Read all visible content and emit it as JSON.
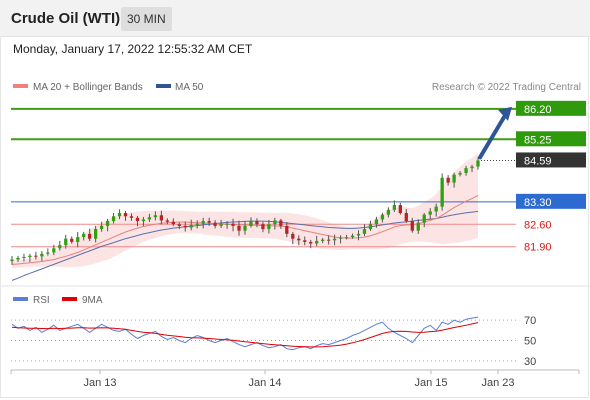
{
  "header": {
    "title": "Crude Oil (WTI)",
    "timeframe": "30 MIN"
  },
  "timestamp": "Monday, January 17, 2022 12:55:32 AM CET",
  "legend": {
    "ma20": {
      "label": "MA 20 + Bollinger Bands",
      "color": "#f08080"
    },
    "ma50": {
      "label": "MA 50",
      "color": "#2f5597"
    },
    "rsi": {
      "label": "RSI",
      "color": "#5b7fd6"
    },
    "rsi_ma": {
      "label": "9MA",
      "color": "#e00000"
    }
  },
  "copyright": "Research © 2022 Trading Central",
  "levels": [
    {
      "value": 86.2,
      "label": "86.20",
      "color": "#2e9a0c",
      "kind": "resistance"
    },
    {
      "value": 85.25,
      "label": "85.25",
      "color": "#2e9a0c",
      "kind": "resistance"
    },
    {
      "value": 84.59,
      "label": "84.59",
      "color": "#333333",
      "kind": "last"
    },
    {
      "value": 83.3,
      "label": "83.30",
      "color": "#2e6bd1",
      "kind": "pivot"
    },
    {
      "value": 82.6,
      "label": "82.60",
      "color": "#d61a1a",
      "kind": "support"
    },
    {
      "value": 81.9,
      "label": "81.90",
      "color": "#d61a1a",
      "kind": "support"
    }
  ],
  "chart_data": [
    {
      "type": "candlestick",
      "title": "Crude Oil (WTI)",
      "x_ticks": [
        "Jan 13",
        "Jan 14",
        "Jan 15",
        "Jan 23"
      ],
      "ylim": [
        80.8,
        86.6
      ],
      "close_path": [
        81.5,
        81.55,
        81.58,
        81.62,
        81.6,
        81.68,
        81.72,
        81.85,
        81.95,
        82.15,
        82.05,
        82.2,
        82.3,
        82.15,
        82.45,
        82.55,
        82.7,
        82.85,
        82.95,
        82.85,
        82.8,
        82.7,
        82.75,
        82.82,
        82.88,
        82.72,
        82.68,
        82.6,
        82.55,
        82.5,
        82.58,
        82.62,
        82.7,
        82.65,
        82.55,
        82.6,
        82.62,
        82.55,
        82.4,
        82.55,
        82.7,
        82.6,
        82.45,
        82.6,
        82.72,
        82.55,
        82.3,
        82.15,
        82.1,
        82.05,
        82.0,
        82.08,
        82.12,
        82.1,
        82.15,
        82.18,
        82.2,
        82.25,
        82.3,
        82.45,
        82.6,
        82.75,
        82.9,
        83.05,
        83.2,
        82.95,
        82.7,
        82.4,
        82.65,
        82.9,
        83.0,
        83.15,
        84.05,
        83.9,
        84.15,
        84.2,
        84.35,
        84.4,
        84.59
      ],
      "ma20_path": [
        81.35,
        81.36,
        81.38,
        81.4,
        81.42,
        81.44,
        81.47,
        81.5,
        81.55,
        81.6,
        81.66,
        81.72,
        81.8,
        81.88,
        81.96,
        82.04,
        82.12,
        82.2,
        82.28,
        82.36,
        82.42,
        82.48,
        82.53,
        82.57,
        82.6,
        82.63,
        82.65,
        82.66,
        82.67,
        82.67,
        82.66,
        82.65,
        82.64,
        82.63,
        82.62,
        82.61,
        82.6,
        82.59,
        82.58,
        82.58,
        82.57,
        82.57,
        82.56,
        82.56,
        82.55,
        82.54,
        82.52,
        82.48,
        82.44,
        82.4,
        82.36,
        82.32,
        82.28,
        82.24,
        82.2,
        82.18,
        82.17,
        82.17,
        82.18,
        82.2,
        82.24,
        82.3,
        82.37,
        82.44,
        82.52,
        82.56,
        82.58,
        82.58,
        82.62,
        82.67,
        82.72,
        82.78,
        82.88,
        83.0,
        83.12,
        83.22,
        83.32,
        83.4,
        83.5
      ],
      "ma50_path": [
        80.85,
        80.92,
        81.0,
        81.07,
        81.14,
        81.21,
        81.28,
        81.35,
        81.42,
        81.49,
        81.56,
        81.63,
        81.7,
        81.77,
        81.84,
        81.91,
        81.97,
        82.03,
        82.09,
        82.15,
        82.2,
        82.25,
        82.3,
        82.34,
        82.38,
        82.42,
        82.45,
        82.48,
        82.5,
        82.52,
        82.54,
        82.56,
        82.58,
        82.6,
        82.62,
        82.64,
        82.66,
        82.67,
        82.68,
        82.69,
        82.7,
        82.7,
        82.7,
        82.69,
        82.68,
        82.66,
        82.64,
        82.62,
        82.6,
        82.58,
        82.56,
        82.54,
        82.52,
        82.5,
        82.49,
        82.48,
        82.47,
        82.47,
        82.48,
        82.5,
        82.52,
        82.55,
        82.58,
        82.61,
        82.64,
        82.66,
        82.68,
        82.7,
        82.72,
        82.74,
        82.76,
        82.78,
        82.82,
        82.86,
        82.9,
        82.93,
        82.96,
        82.98,
        83.0
      ],
      "bb_width": [
        0.12,
        0.12,
        0.12,
        0.13,
        0.14,
        0.16,
        0.18,
        0.22,
        0.28,
        0.34,
        0.4,
        0.45,
        0.5,
        0.55,
        0.58,
        0.6,
        0.62,
        0.62,
        0.6,
        0.58,
        0.55,
        0.52,
        0.48,
        0.45,
        0.42,
        0.4,
        0.38,
        0.36,
        0.35,
        0.34,
        0.34,
        0.34,
        0.35,
        0.36,
        0.37,
        0.38,
        0.39,
        0.4,
        0.4,
        0.4,
        0.4,
        0.4,
        0.4,
        0.4,
        0.4,
        0.42,
        0.44,
        0.46,
        0.47,
        0.48,
        0.48,
        0.47,
        0.45,
        0.42,
        0.4,
        0.38,
        0.36,
        0.35,
        0.35,
        0.38,
        0.42,
        0.48,
        0.54,
        0.58,
        0.6,
        0.58,
        0.55,
        0.52,
        0.56,
        0.62,
        0.68,
        0.76,
        0.9,
        1.0,
        1.1,
        1.18,
        1.24,
        1.28,
        1.32
      ],
      "projection": {
        "from": 84.59,
        "to": 86.2
      }
    },
    {
      "type": "line",
      "title": "RSI",
      "ylim": [
        25,
        80
      ],
      "y_ticks": [
        70,
        50,
        30
      ],
      "series": [
        {
          "name": "RSI",
          "values": [
            66,
            62,
            64,
            60,
            63,
            58,
            61,
            65,
            60,
            62,
            64,
            66,
            62,
            58,
            62,
            66,
            63,
            60,
            59,
            61,
            56,
            52,
            55,
            57,
            59,
            54,
            51,
            53,
            50,
            48,
            52,
            55,
            53,
            50,
            48,
            50,
            52,
            49,
            46,
            44,
            46,
            48,
            45,
            43,
            44,
            46,
            42,
            41,
            43,
            44,
            42,
            45,
            47,
            46,
            48,
            50,
            52,
            55,
            57,
            60,
            63,
            66,
            68,
            62,
            58,
            55,
            52,
            48,
            55,
            62,
            65,
            60,
            68,
            66,
            70,
            68,
            71,
            72,
            73
          ]
        },
        {
          "name": "9MA",
          "values": [
            63,
            62.5,
            62.3,
            62.0,
            62.0,
            61.8,
            61.7,
            62.0,
            61.8,
            62.0,
            62.2,
            62.5,
            62.5,
            62.2,
            62.3,
            62.5,
            62.4,
            62.0,
            61.5,
            61.0,
            60.0,
            59.0,
            58.2,
            57.6,
            57.0,
            56.0,
            55.2,
            54.6,
            54.0,
            53.2,
            52.8,
            52.6,
            52.4,
            52.0,
            51.5,
            51.0,
            50.6,
            50.2,
            49.6,
            48.8,
            48.2,
            47.6,
            47.0,
            46.3,
            45.8,
            45.3,
            44.8,
            44.4,
            44.2,
            44.0,
            43.8,
            43.8,
            44.0,
            44.3,
            44.8,
            45.5,
            46.5,
            47.8,
            49.3,
            51.0,
            53.0,
            55.0,
            57.0,
            58.3,
            59.0,
            59.2,
            59.0,
            58.4,
            58.0,
            58.2,
            58.8,
            59.2,
            60.3,
            61.4,
            62.8,
            63.9,
            65.0,
            66.3,
            67.6
          ]
        }
      ]
    }
  ]
}
